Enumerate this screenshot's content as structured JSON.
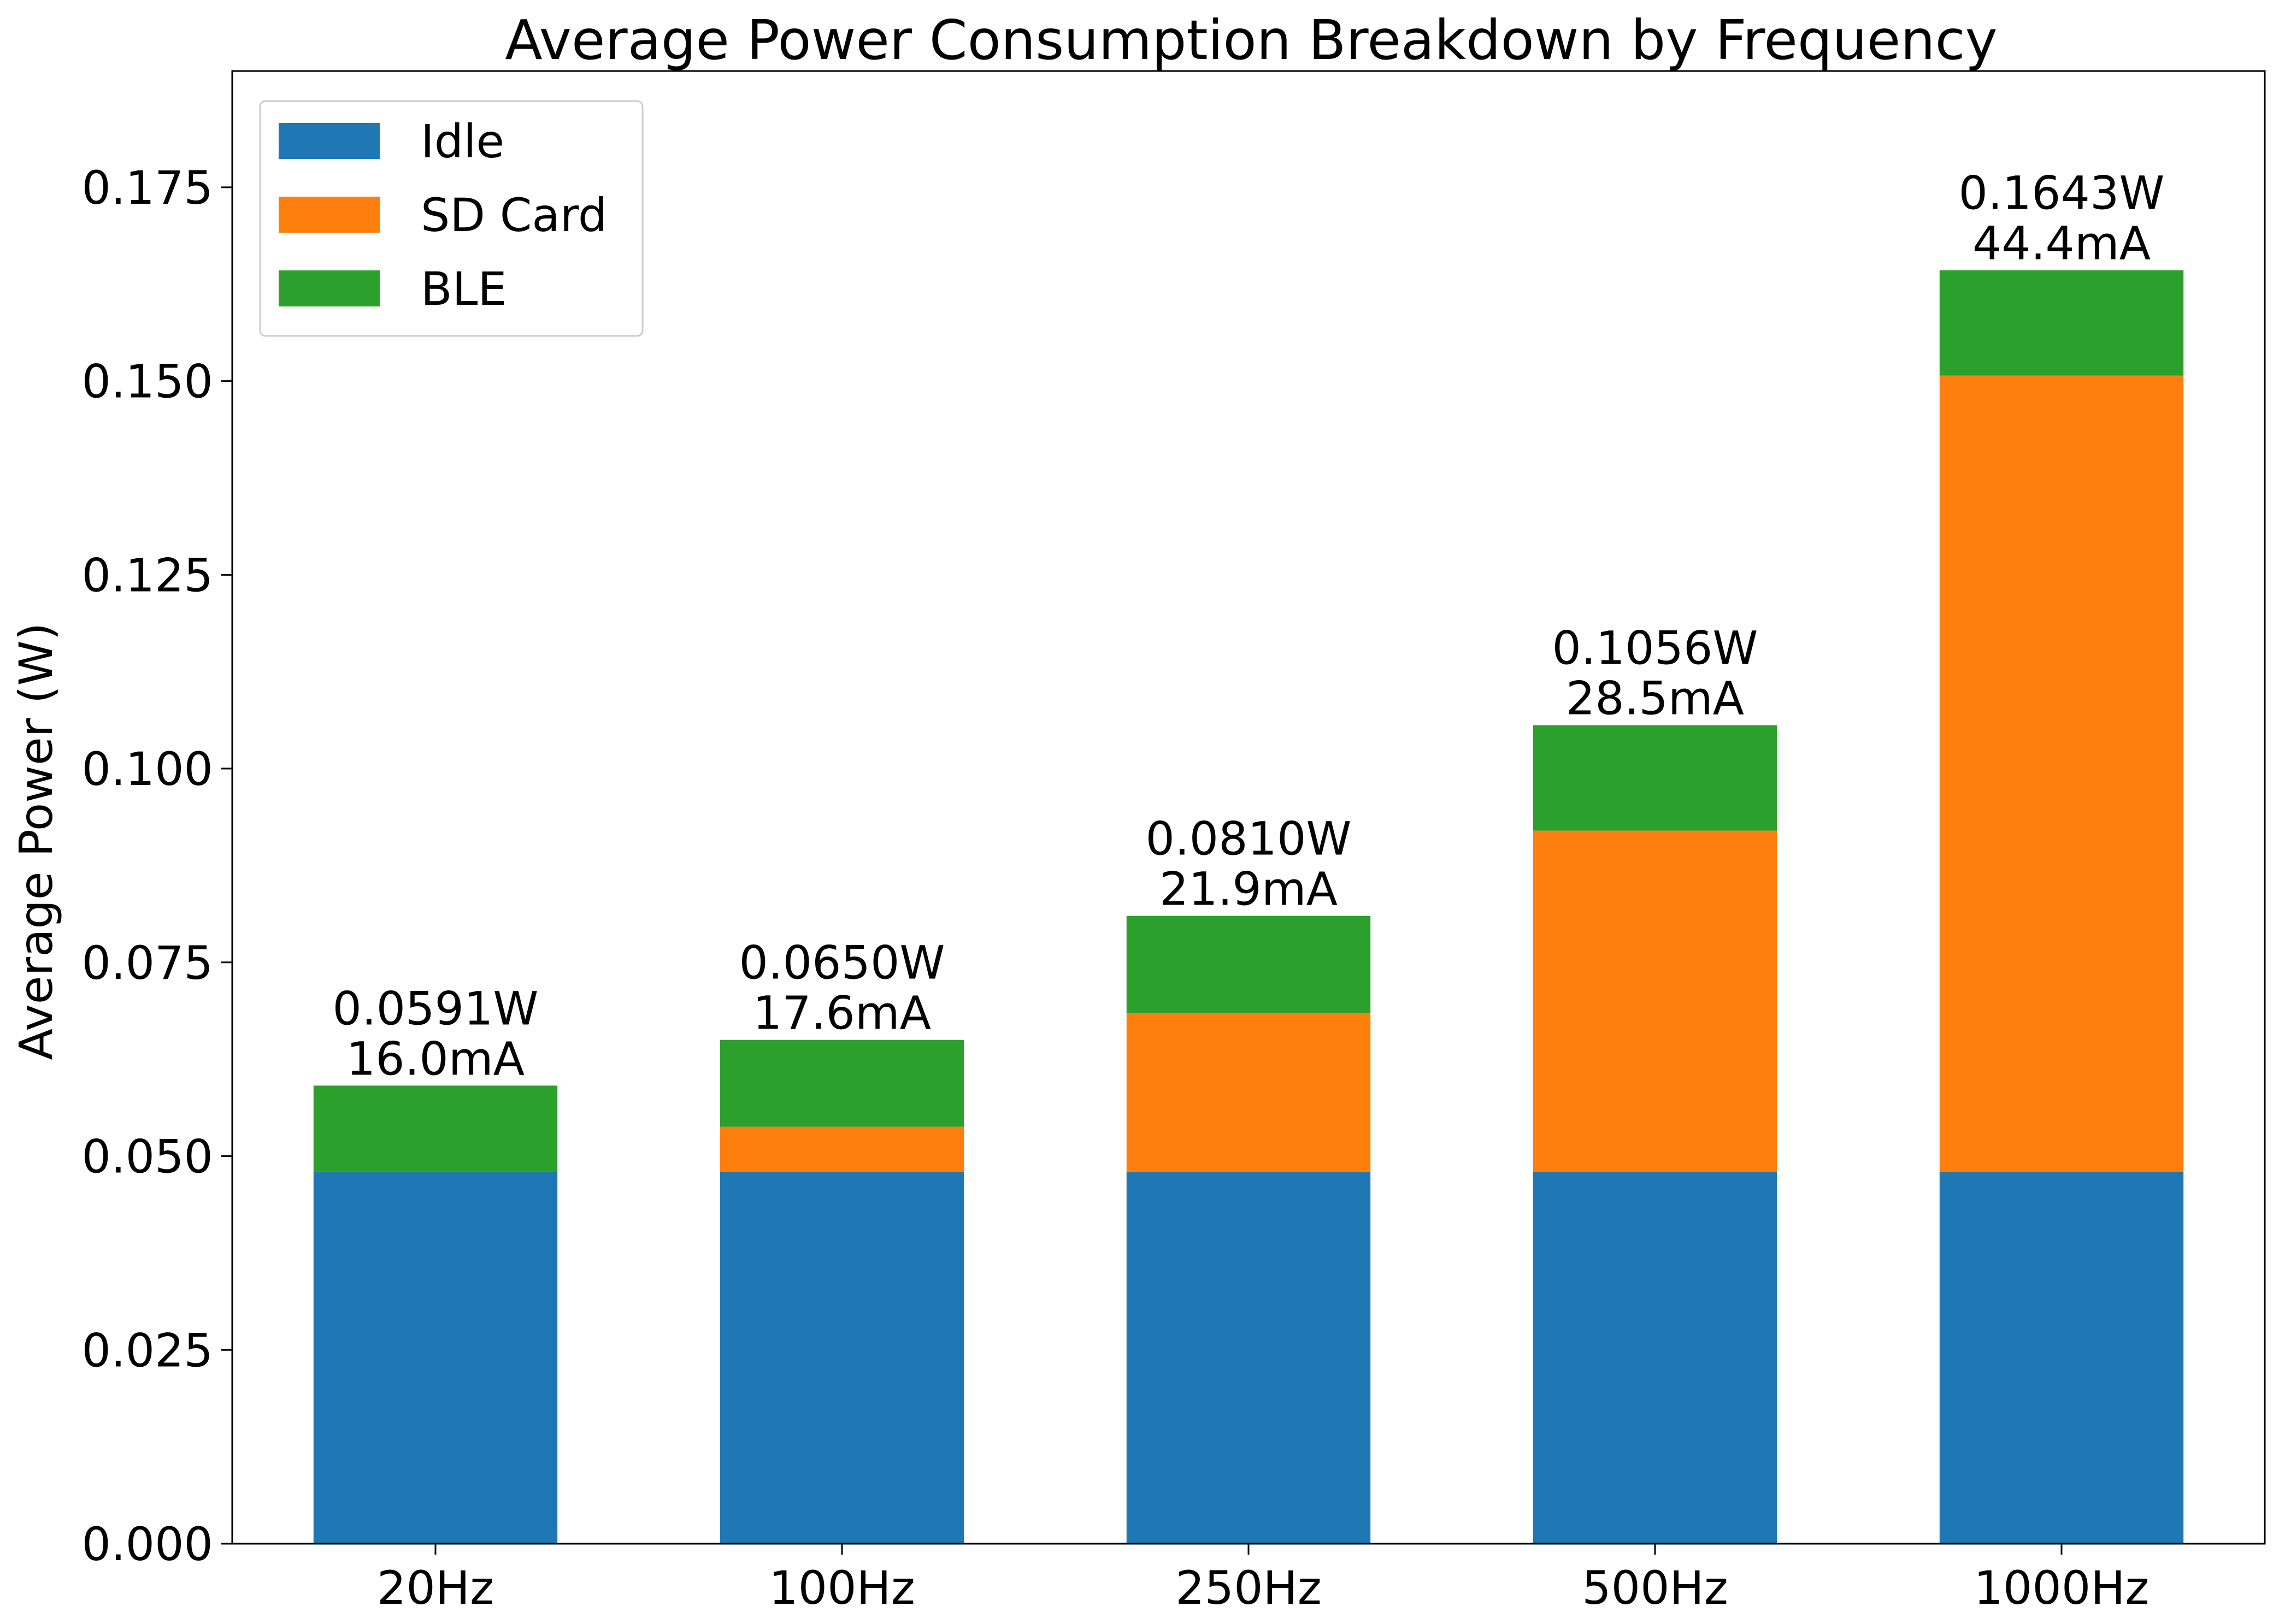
{
  "chart_data": {
    "type": "bar",
    "stacked": true,
    "title": "Average Power Consumption Breakdown by Frequency",
    "xlabel": "",
    "ylabel": "Average Power (W)",
    "ylim": [
      0,
      0.19
    ],
    "yticks": [
      0.0,
      0.025,
      0.05,
      0.075,
      0.1,
      0.125,
      0.15,
      0.175
    ],
    "ytick_labels": [
      "0.000",
      "0.025",
      "0.050",
      "0.075",
      "0.100",
      "0.125",
      "0.150",
      "0.175"
    ],
    "grid": false,
    "legend_position": "top-left",
    "categories": [
      "20Hz",
      "100Hz",
      "250Hz",
      "500Hz",
      "1000Hz"
    ],
    "series": [
      {
        "name": "Idle",
        "color": "#1f77b4",
        "values": [
          0.048,
          0.048,
          0.048,
          0.048,
          0.048
        ]
      },
      {
        "name": "SD Card",
        "color": "#ff7f0e",
        "values": [
          0.0,
          0.0058,
          0.0205,
          0.044,
          0.1027
        ]
      },
      {
        "name": "BLE",
        "color": "#2ca02c",
        "values": [
          0.0111,
          0.0112,
          0.0125,
          0.0136,
          0.0136
        ]
      }
    ],
    "totals": [
      {
        "power": "0.0591W",
        "current": "16.0mA",
        "value": 0.0591
      },
      {
        "power": "0.0650W",
        "current": "17.6mA",
        "value": 0.065
      },
      {
        "power": "0.0810W",
        "current": "21.9mA",
        "value": 0.081
      },
      {
        "power": "0.1056W",
        "current": "28.5mA",
        "value": 0.1056
      },
      {
        "power": "0.1643W",
        "current": "44.4mA",
        "value": 0.1643
      }
    ]
  }
}
